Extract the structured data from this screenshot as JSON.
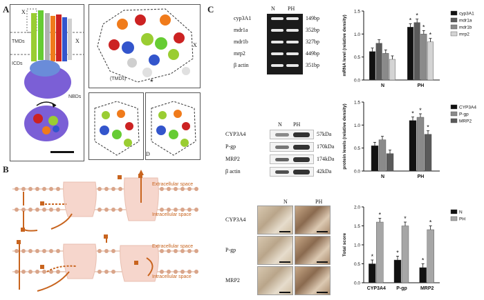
{
  "panels": {
    "A": {
      "label": "A",
      "annotations": {
        "x_top": "X",
        "x_right": "X",
        "x_inset": "X",
        "tmds": "TMDs",
        "icds": "ICDs",
        "nbds": "NBDs",
        "tmds_paren": "(TMDs)",
        "d_label": "D"
      }
    },
    "B": {
      "label": "B",
      "top": {
        "extracellular": "Extracellular space",
        "intracellular": "Intracellular space"
      },
      "bottom": {
        "extracellular": "Extracellular space",
        "intracellular": "Intracellular space"
      }
    },
    "C": {
      "label": "C",
      "gel": {
        "headers": [
          "N",
          "PH"
        ],
        "rows": [
          {
            "name": "cyp3A1",
            "size": "149bp"
          },
          {
            "name": "mdr1a",
            "size": "352bp"
          },
          {
            "name": "mdr1b",
            "size": "327bp"
          },
          {
            "name": "mrp2",
            "size": "449bp"
          },
          {
            "name": "β actin",
            "size": "351bp"
          }
        ]
      },
      "western": {
        "headers": [
          "N",
          "PH"
        ],
        "rows": [
          {
            "name": "CYP3A4",
            "size": "57kDa"
          },
          {
            "name": "P-gp",
            "size": "170kDa"
          },
          {
            "name": "MRP2",
            "size": "174kDa"
          },
          {
            "name": "β actin",
            "size": "42kDa"
          }
        ]
      },
      "ihc": {
        "headers": [
          "N",
          "PH"
        ],
        "rows": [
          "CYP3A4",
          "P-gp",
          "MRP2"
        ]
      }
    }
  },
  "colors": {
    "black": "#111111",
    "darkgray": "#5a5a5a",
    "gray": "#8a8a8a",
    "lightgray": "#cfcfcf",
    "orange": "#c8641e",
    "pink": "#f6d6cc"
  },
  "chart_data": [
    {
      "type": "bar",
      "ylabel": "mRNA level (relative density)",
      "categories": [
        "N",
        "PH"
      ],
      "ylim": [
        0,
        1.5
      ],
      "yticks": [
        "0.0",
        "0.5",
        "1.0",
        "1.5"
      ],
      "legend_position": "right",
      "series": [
        {
          "name": "cyp3A1",
          "values": [
            0.62,
            1.15
          ],
          "color": "#111111"
        },
        {
          "name": "mdr1a",
          "values": [
            0.8,
            1.25
          ],
          "color": "#5a5a5a"
        },
        {
          "name": "mdr1b",
          "values": [
            0.58,
            1.0
          ],
          "color": "#8a8a8a"
        },
        {
          "name": "mrp2",
          "values": [
            0.45,
            0.83
          ],
          "color": "#d4d4d4"
        }
      ],
      "significance": [
        "",
        "*"
      ]
    },
    {
      "type": "bar",
      "ylabel": "protein levels (relative density)",
      "categories": [
        "N",
        "PH"
      ],
      "ylim": [
        0,
        1.5
      ],
      "yticks": [
        "0.0",
        "0.5",
        "1.0",
        "1.5"
      ],
      "legend_position": "right",
      "series": [
        {
          "name": "CYP3A4",
          "values": [
            0.55,
            1.1
          ],
          "color": "#111111"
        },
        {
          "name": "P-gp",
          "values": [
            0.68,
            1.17
          ],
          "color": "#8a8a8a"
        },
        {
          "name": "MRP2",
          "values": [
            0.38,
            0.8
          ],
          "color": "#5a5a5a"
        }
      ],
      "significance": [
        "",
        "*"
      ]
    },
    {
      "type": "bar",
      "ylabel": "Total score",
      "categories": [
        "CYP3A4",
        "P-gp",
        "MRP2"
      ],
      "ylim": [
        0,
        2.0
      ],
      "yticks": [
        "0.0",
        "0.5",
        "1.0",
        "1.5",
        "2.0"
      ],
      "legend_position": "top-right",
      "series": [
        {
          "name": "N",
          "values": [
            0.5,
            0.6,
            0.4
          ],
          "color": "#111111"
        },
        {
          "name": "PH",
          "values": [
            1.6,
            1.5,
            1.4
          ],
          "color": "#a6a6a6"
        }
      ],
      "significance": [
        "*",
        "*",
        "*"
      ]
    }
  ]
}
